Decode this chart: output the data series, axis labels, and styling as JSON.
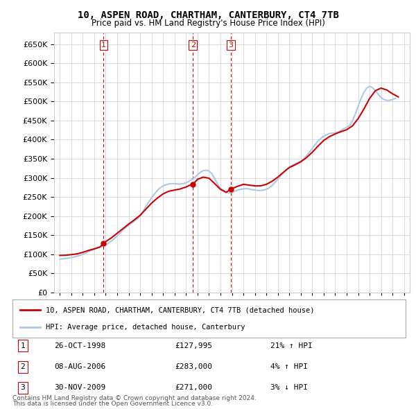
{
  "title": "10, ASPEN ROAD, CHARTHAM, CANTERBURY, CT4 7TB",
  "subtitle": "Price paid vs. HM Land Registry's House Price Index (HPI)",
  "legend_label_red": "10, ASPEN ROAD, CHARTHAM, CANTERBURY, CT4 7TB (detached house)",
  "legend_label_blue": "HPI: Average price, detached house, Canterbury",
  "footnote1": "Contains HM Land Registry data © Crown copyright and database right 2024.",
  "footnote2": "This data is licensed under the Open Government Licence v3.0.",
  "transactions": [
    {
      "num": 1,
      "date": "26-OCT-1998",
      "price": 127995,
      "pct": "21%",
      "dir": "↑"
    },
    {
      "num": 2,
      "date": "08-AUG-2006",
      "price": 283000,
      "pct": "4%",
      "dir": "↑"
    },
    {
      "num": 3,
      "date": "30-NOV-2009",
      "price": 271000,
      "pct": "3%",
      "dir": "↓"
    }
  ],
  "transaction_years": [
    1998.82,
    2006.6,
    2009.92
  ],
  "transaction_prices": [
    127995,
    283000,
    271000
  ],
  "vline_color": "#cc0000",
  "dot_color": "#cc0000",
  "red_line_color": "#cc0000",
  "blue_line_color": "#aac8e8",
  "grid_color": "#cccccc",
  "background_color": "#ffffff",
  "ylim": [
    0,
    680000
  ],
  "yticks": [
    0,
    50000,
    100000,
    150000,
    200000,
    250000,
    300000,
    350000,
    400000,
    450000,
    500000,
    550000,
    600000,
    650000
  ],
  "years": [
    1995,
    1996,
    1997,
    1998,
    1999,
    2000,
    2001,
    2002,
    2003,
    2004,
    2005,
    2006,
    2007,
    2008,
    2009,
    2010,
    2011,
    2012,
    2013,
    2014,
    2015,
    2016,
    2017,
    2018,
    2019,
    2020,
    2021,
    2022,
    2023,
    2024,
    2025
  ],
  "hpi_years": [
    1995.0,
    1995.25,
    1995.5,
    1995.75,
    1996.0,
    1996.25,
    1996.5,
    1996.75,
    1997.0,
    1997.25,
    1997.5,
    1997.75,
    1998.0,
    1998.25,
    1998.5,
    1998.75,
    1999.0,
    1999.25,
    1999.5,
    1999.75,
    2000.0,
    2000.25,
    2000.5,
    2000.75,
    2001.0,
    2001.25,
    2001.5,
    2001.75,
    2002.0,
    2002.25,
    2002.5,
    2002.75,
    2003.0,
    2003.25,
    2003.5,
    2003.75,
    2004.0,
    2004.25,
    2004.5,
    2004.75,
    2005.0,
    2005.25,
    2005.5,
    2005.75,
    2006.0,
    2006.25,
    2006.5,
    2006.75,
    2007.0,
    2007.25,
    2007.5,
    2007.75,
    2008.0,
    2008.25,
    2008.5,
    2008.75,
    2009.0,
    2009.25,
    2009.5,
    2009.75,
    2010.0,
    2010.25,
    2010.5,
    2010.75,
    2011.0,
    2011.25,
    2011.5,
    2011.75,
    2012.0,
    2012.25,
    2012.5,
    2012.75,
    2013.0,
    2013.25,
    2013.5,
    2013.75,
    2014.0,
    2014.25,
    2014.5,
    2014.75,
    2015.0,
    2015.25,
    2015.5,
    2015.75,
    2016.0,
    2016.25,
    2016.5,
    2016.75,
    2017.0,
    2017.25,
    2017.5,
    2017.75,
    2018.0,
    2018.25,
    2018.5,
    2018.75,
    2019.0,
    2019.25,
    2019.5,
    2019.75,
    2020.0,
    2020.25,
    2020.5,
    2020.75,
    2021.0,
    2021.25,
    2021.5,
    2021.75,
    2022.0,
    2022.25,
    2022.5,
    2022.75,
    2023.0,
    2023.25,
    2023.5,
    2023.75,
    2024.0,
    2024.25
  ],
  "hpi_values": [
    87000,
    88000,
    89000,
    90000,
    91500,
    93000,
    95000,
    97000,
    100000,
    103000,
    107000,
    110000,
    113000,
    116000,
    119000,
    121000,
    124000,
    129000,
    135000,
    141000,
    148000,
    155000,
    163000,
    170000,
    176000,
    181000,
    187000,
    193000,
    200000,
    212000,
    225000,
    237000,
    248000,
    258000,
    267000,
    274000,
    279000,
    282000,
    284000,
    285000,
    285000,
    284000,
    284000,
    285000,
    287000,
    291000,
    296000,
    301000,
    308000,
    315000,
    319000,
    320000,
    318000,
    311000,
    298000,
    284000,
    273000,
    268000,
    263000,
    260000,
    262000,
    265000,
    268000,
    270000,
    271000,
    272000,
    271000,
    269000,
    268000,
    267000,
    267000,
    268000,
    270000,
    274000,
    280000,
    288000,
    296000,
    305000,
    314000,
    322000,
    328000,
    333000,
    337000,
    340000,
    344000,
    350000,
    358000,
    367000,
    377000,
    387000,
    396000,
    403000,
    409000,
    413000,
    416000,
    417000,
    418000,
    420000,
    424000,
    429000,
    432000,
    437000,
    449000,
    467000,
    487000,
    507000,
    524000,
    535000,
    540000,
    536000,
    528000,
    519000,
    510000,
    505000,
    503000,
    503000,
    505000,
    508000
  ],
  "red_years": [
    1995.0,
    1995.5,
    1996.0,
    1996.5,
    1997.0,
    1997.5,
    1998.0,
    1998.5,
    1998.82,
    1999.0,
    1999.5,
    2000.0,
    2000.5,
    2001.0,
    2001.5,
    2002.0,
    2002.5,
    2003.0,
    2003.5,
    2004.0,
    2004.5,
    2005.0,
    2005.5,
    2006.0,
    2006.5,
    2006.6,
    2007.0,
    2007.5,
    2008.0,
    2008.5,
    2009.0,
    2009.5,
    2009.92,
    2010.0,
    2010.5,
    2011.0,
    2011.5,
    2012.0,
    2012.5,
    2013.0,
    2013.5,
    2014.0,
    2014.5,
    2015.0,
    2015.5,
    2016.0,
    2016.5,
    2017.0,
    2017.5,
    2018.0,
    2018.5,
    2019.0,
    2019.5,
    2020.0,
    2020.5,
    2021.0,
    2021.5,
    2022.0,
    2022.5,
    2023.0,
    2023.5,
    2024.0,
    2024.5
  ],
  "red_values": [
    97000,
    97500,
    99000,
    101000,
    105000,
    110000,
    114000,
    119000,
    127995,
    133000,
    143000,
    155000,
    167000,
    179000,
    190000,
    202000,
    218000,
    234000,
    247000,
    258000,
    265000,
    268000,
    271000,
    276000,
    283000,
    283000,
    296000,
    302000,
    299000,
    285000,
    270000,
    262000,
    271000,
    272000,
    278000,
    283000,
    281000,
    279000,
    279000,
    283000,
    291000,
    302000,
    315000,
    327000,
    334000,
    342000,
    353000,
    367000,
    383000,
    398000,
    408000,
    415000,
    421000,
    426000,
    436000,
    455000,
    480000,
    508000,
    528000,
    535000,
    530000,
    520000,
    512000
  ]
}
